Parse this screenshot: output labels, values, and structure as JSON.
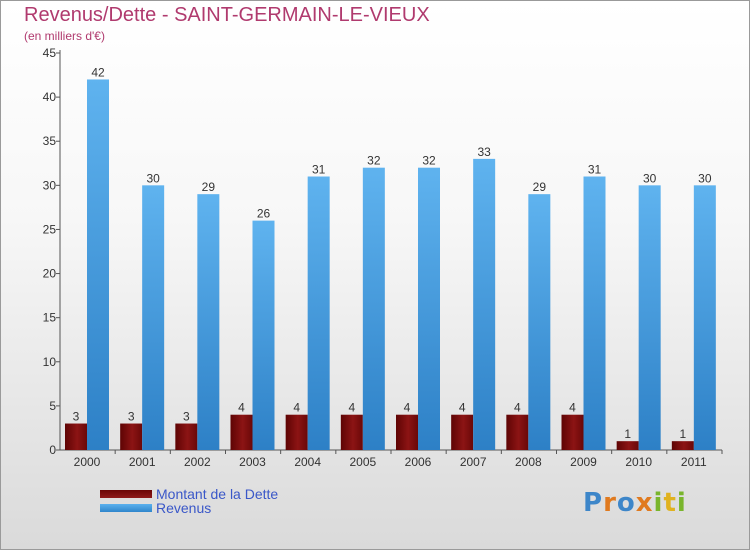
{
  "header": {
    "title": "Revenus/Dette - SAINT-GERMAIN-LE-VIEUX",
    "subtitle": "(en milliers d'€)"
  },
  "colors": {
    "title": "#b03a6e",
    "dette": "#7a0a0a",
    "revenus": "#4aa3e6",
    "legend_text": "#3a57c8"
  },
  "chart_data": {
    "type": "bar",
    "title": "Revenus/Dette - SAINT-GERMAIN-LE-VIEUX",
    "subtitle": "(en milliers d'€)",
    "categories": [
      "2000",
      "2001",
      "2002",
      "2003",
      "2004",
      "2005",
      "2006",
      "2007",
      "2008",
      "2009",
      "2010",
      "2011"
    ],
    "series": [
      {
        "name": "Montant de la Dette",
        "values": [
          3,
          3,
          3,
          4,
          4,
          4,
          4,
          4,
          4,
          4,
          1,
          1
        ]
      },
      {
        "name": "Revenus",
        "values": [
          42,
          30,
          29,
          26,
          31,
          32,
          32,
          33,
          29,
          31,
          30,
          30
        ]
      }
    ],
    "yticks": [
      0,
      5,
      10,
      15,
      20,
      25,
      30,
      35,
      40,
      45
    ],
    "ylim": [
      0,
      45
    ],
    "grid": false,
    "legend_position": "bottom-left"
  },
  "legend": {
    "items": [
      {
        "label": "Montant de la Dette"
      },
      {
        "label": "Revenus"
      }
    ]
  },
  "logo": {
    "letters": [
      "P",
      "r",
      "o",
      "x",
      "i",
      "t",
      "i"
    ]
  }
}
